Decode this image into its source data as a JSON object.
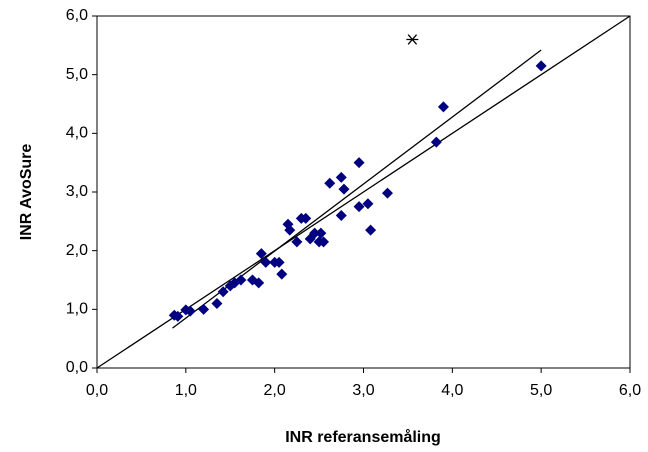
{
  "chart_data": {
    "type": "scatter",
    "xlabel": "INR referansemåling",
    "ylabel": "INR AvoSure",
    "xlim": [
      0,
      6
    ],
    "ylim": [
      0,
      6
    ],
    "xticks": [
      {
        "value": 0,
        "label": "0,0"
      },
      {
        "value": 1,
        "label": "1,0"
      },
      {
        "value": 2,
        "label": "2,0"
      },
      {
        "value": 3,
        "label": "3,0"
      },
      {
        "value": 4,
        "label": "4,0"
      },
      {
        "value": 5,
        "label": "5,0"
      },
      {
        "value": 6,
        "label": "6,0"
      }
    ],
    "yticks": [
      {
        "value": 0,
        "label": "0,0"
      },
      {
        "value": 1,
        "label": "1,0"
      },
      {
        "value": 2,
        "label": "2,0"
      },
      {
        "value": 3,
        "label": "3,0"
      },
      {
        "value": 4,
        "label": "4,0"
      },
      {
        "value": 5,
        "label": "5,0"
      },
      {
        "value": 6,
        "label": "6,0"
      }
    ],
    "series": [
      {
        "color": "#000080",
        "marker": "diamond",
        "x": [
          0.87,
          0.91,
          1.0,
          1.05,
          1.2,
          1.35,
          1.42,
          1.5,
          1.55,
          1.62,
          1.75,
          1.82,
          1.85,
          1.9,
          2.0,
          2.05,
          2.08,
          2.15,
          2.17,
          2.25,
          2.3,
          2.35,
          2.4,
          2.45,
          2.5,
          2.52,
          2.55,
          2.62,
          2.75,
          2.78,
          2.75,
          2.95,
          2.95,
          3.05,
          3.08,
          3.27,
          3.82,
          3.9,
          5.0
        ],
        "values": [
          0.9,
          0.88,
          0.99,
          0.97,
          1.0,
          1.1,
          1.3,
          1.4,
          1.45,
          1.5,
          1.5,
          1.45,
          1.95,
          1.8,
          1.8,
          1.8,
          1.6,
          2.45,
          2.35,
          2.15,
          2.55,
          2.55,
          2.2,
          2.3,
          2.15,
          2.3,
          2.15,
          3.15,
          3.25,
          3.05,
          2.6,
          3.5,
          2.75,
          2.8,
          2.35,
          2.98,
          3.85,
          4.45,
          5.15
        ]
      },
      {
        "color": "#000000",
        "marker": "asterisk",
        "x": [
          3.55
        ],
        "values": [
          5.6
        ]
      }
    ],
    "lines": [
      {
        "color": "#000000",
        "x": [
          0,
          6
        ],
        "values": [
          0,
          6
        ]
      },
      {
        "color": "#000000",
        "x": [
          0.85,
          5.0
        ],
        "values": [
          0.68,
          5.42
        ]
      }
    ]
  }
}
